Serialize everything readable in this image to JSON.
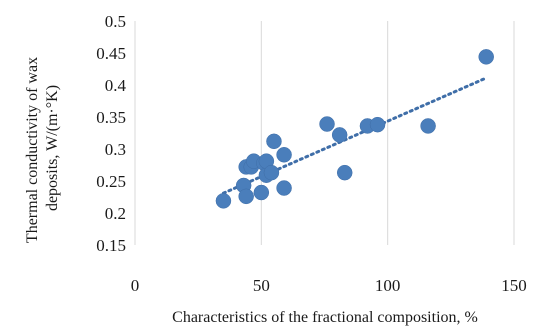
{
  "chart_data": {
    "type": "scatter",
    "xlabel": "Characteristics of the fractional composition, %",
    "ylabel": [
      "Thermal conductivity of wax",
      "deposits, W/(m·°K)"
    ],
    "xlim": [
      0,
      150
    ],
    "ylim": [
      0.15,
      0.5
    ],
    "xticks": [
      0,
      50,
      100,
      150
    ],
    "xtick_labels": [
      "0",
      "50",
      "100",
      "150"
    ],
    "yticks": [
      0.15,
      0.2,
      0.25,
      0.3,
      0.35,
      0.4,
      0.45,
      0.5
    ],
    "ytick_labels": [
      "0.15",
      "0.2",
      "0.25",
      "0.3",
      "0.35",
      "0.4",
      "0.45",
      "0.5"
    ],
    "grid": "vertical",
    "legend": "none",
    "colors": {
      "points": "#4a7ebb",
      "trendline": "#3f6ea8"
    },
    "points": [
      {
        "x": 35,
        "y": 0.219
      },
      {
        "x": 43,
        "y": 0.243
      },
      {
        "x": 44,
        "y": 0.226
      },
      {
        "x": 44,
        "y": 0.272
      },
      {
        "x": 46,
        "y": 0.272
      },
      {
        "x": 47,
        "y": 0.281
      },
      {
        "x": 50,
        "y": 0.232
      },
      {
        "x": 51,
        "y": 0.278
      },
      {
        "x": 52,
        "y": 0.259
      },
      {
        "x": 52,
        "y": 0.281
      },
      {
        "x": 54,
        "y": 0.263
      },
      {
        "x": 55,
        "y": 0.312
      },
      {
        "x": 59,
        "y": 0.239
      },
      {
        "x": 59,
        "y": 0.291
      },
      {
        "x": 76,
        "y": 0.339
      },
      {
        "x": 81,
        "y": 0.322
      },
      {
        "x": 83,
        "y": 0.263
      },
      {
        "x": 92,
        "y": 0.336
      },
      {
        "x": 96,
        "y": 0.338
      },
      {
        "x": 116,
        "y": 0.336
      },
      {
        "x": 139,
        "y": 0.444
      }
    ],
    "trendline": {
      "type": "linear",
      "style": "dotted",
      "from": [
        35,
        0.231
      ],
      "to": [
        139,
        0.411
      ]
    }
  }
}
